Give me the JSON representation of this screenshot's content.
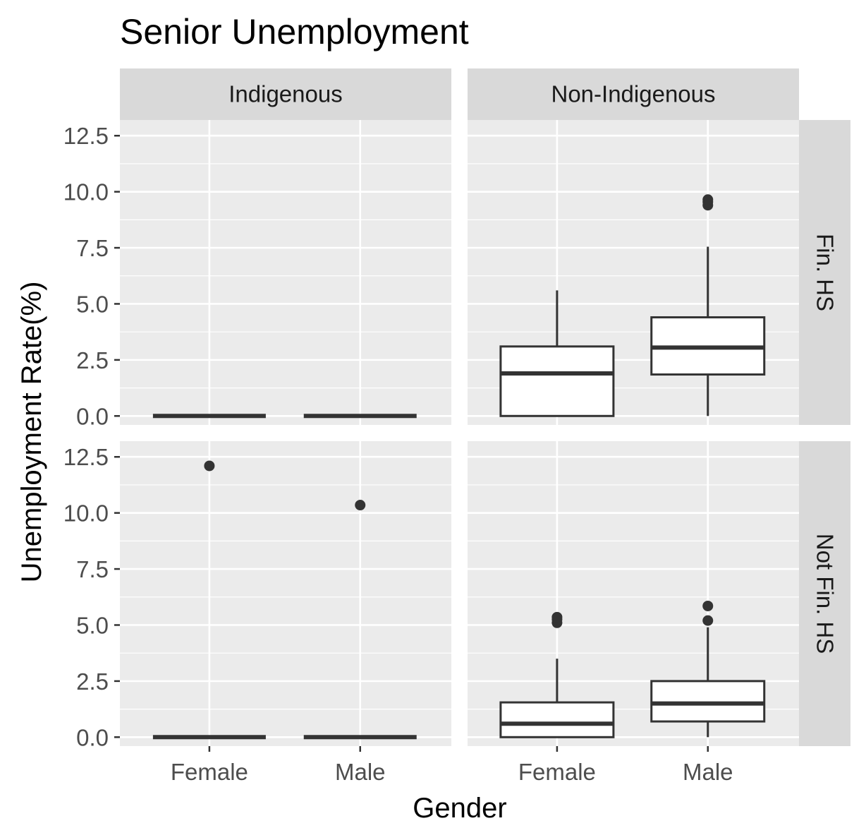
{
  "chart_data": {
    "type": "boxplot",
    "title": "Senior Unemployment",
    "xlabel": "Gender",
    "ylabel": "Unemployment Rate(%)",
    "categories": [
      "Female",
      "Male"
    ],
    "facet_columns": [
      "Indigenous",
      "Non-Indigenous"
    ],
    "facet_rows": [
      "Fin. HS",
      "Not Fin. HS"
    ],
    "ylim": [
      -0.4,
      13.2
    ],
    "yticks": [
      "0.0",
      "2.5",
      "5.0",
      "7.5",
      "10.0",
      "12.5"
    ],
    "ytick_values": [
      0,
      2.5,
      5,
      7.5,
      10,
      12.5
    ],
    "grid": true,
    "colors": {
      "panel": "#ebebeb",
      "strip": "#d9d9d9",
      "grid": "#ffffff",
      "box_line": "#333333",
      "box_fill": "#ffffff"
    },
    "panels": [
      {
        "column": "Indigenous",
        "row": "Fin. HS",
        "boxes": [
          {
            "category": "Female",
            "min": 0,
            "q1": 0,
            "median": 0,
            "q3": 0,
            "max": 0,
            "outliers": []
          },
          {
            "category": "Male",
            "min": 0,
            "q1": 0,
            "median": 0,
            "q3": 0,
            "max": 0,
            "outliers": []
          }
        ]
      },
      {
        "column": "Non-Indigenous",
        "row": "Fin. HS",
        "boxes": [
          {
            "category": "Female",
            "min": 0,
            "q1": 0,
            "median": 1.9,
            "q3": 3.1,
            "max": 5.6,
            "outliers": []
          },
          {
            "category": "Male",
            "min": 0,
            "q1": 1.85,
            "median": 3.05,
            "q3": 4.4,
            "max": 7.55,
            "outliers": [
              9.4,
              9.55,
              9.65
            ]
          }
        ]
      },
      {
        "column": "Indigenous",
        "row": "Not Fin. HS",
        "boxes": [
          {
            "category": "Female",
            "min": 0,
            "q1": 0,
            "median": 0,
            "q3": 0,
            "max": 0,
            "outliers": [
              12.1
            ]
          },
          {
            "category": "Male",
            "min": 0,
            "q1": 0,
            "median": 0,
            "q3": 0,
            "max": 0,
            "outliers": [
              10.35
            ]
          }
        ]
      },
      {
        "column": "Non-Indigenous",
        "row": "Not Fin. HS",
        "boxes": [
          {
            "category": "Female",
            "min": 0,
            "q1": 0,
            "median": 0.6,
            "q3": 1.55,
            "max": 3.5,
            "outliers": [
              5.1,
              5.25,
              5.35
            ]
          },
          {
            "category": "Male",
            "min": 0,
            "q1": 0.7,
            "median": 1.5,
            "q3": 2.5,
            "max": 4.9,
            "outliers": [
              5.2,
              5.85
            ]
          }
        ]
      }
    ]
  }
}
